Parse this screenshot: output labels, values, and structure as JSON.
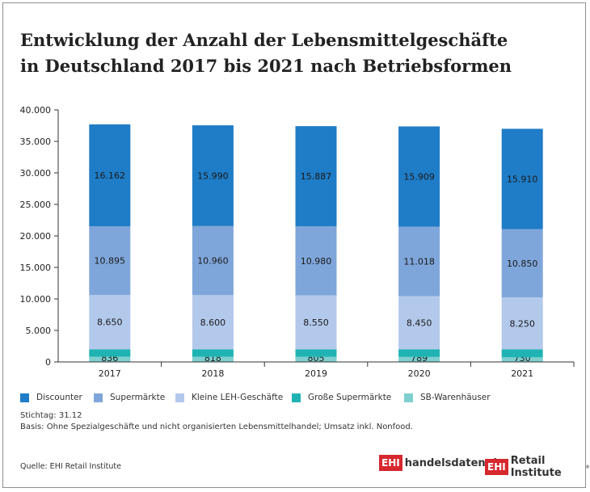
{
  "title": {
    "line1": "Entwicklung der Anzahl der Lebensmittelgeschäfte",
    "line2": "in Deutschland 2017 bis 2021 nach Betriebsformen"
  },
  "chart_data": {
    "type": "bar",
    "stacked": true,
    "categories": [
      "2017",
      "2018",
      "2019",
      "2020",
      "2021"
    ],
    "series": [
      {
        "name": "SB-Warenhäuser",
        "values": [
          836,
          818,
          805,
          789,
          730
        ],
        "labels": [
          "836",
          "818",
          "805",
          "789",
          "730"
        ],
        "color": "#7fcfcf"
      },
      {
        "name": "Große Supermärkte",
        "values": [
          1154,
          1183,
          1196,
          1209,
          1256
        ],
        "labels": [
          "1.154",
          "1.183",
          "1.196",
          "1.209",
          "1.256"
        ],
        "color": "#20b3b3"
      },
      {
        "name": "Kleine LEH-Geschäfte",
        "values": [
          8650,
          8600,
          8550,
          8450,
          8250
        ],
        "labels": [
          "8.650",
          "8.600",
          "8.550",
          "8.450",
          "8.250"
        ],
        "color": "#b3c9eb"
      },
      {
        "name": "Supermärkte",
        "values": [
          10895,
          10960,
          10980,
          11018,
          10850
        ],
        "labels": [
          "10.895",
          "10.960",
          "10.980",
          "11.018",
          "10.850"
        ],
        "color": "#7fa6da"
      },
      {
        "name": "Discounter",
        "values": [
          16162,
          15990,
          15887,
          15909,
          15910
        ],
        "labels": [
          "16.162",
          "15.990",
          "15.887",
          "15.909",
          "15.910"
        ],
        "color": "#1f7cc6"
      }
    ],
    "ylim": [
      0,
      40000
    ],
    "yticks": [
      0,
      5000,
      10000,
      15000,
      20000,
      25000,
      30000,
      35000,
      40000
    ],
    "ytick_labels": [
      "0",
      "5.000",
      "10.000",
      "15.000",
      "20.000",
      "25.000",
      "30.000",
      "35.000",
      "40.000"
    ],
    "legend_position": "bottom",
    "grid": false
  },
  "legend": [
    {
      "label": "Discounter",
      "color": "#1f7cc6"
    },
    {
      "label": "Supermärkte",
      "color": "#7fa6da"
    },
    {
      "label": "Kleine LEH-Geschäfte",
      "color": "#b3c9eb"
    },
    {
      "label": "Große Supermärkte",
      "color": "#20b3b3"
    },
    {
      "label": "SB-Warenhäuser",
      "color": "#7fcfcf"
    }
  ],
  "notes": {
    "stichtag": "Stichtag: 31.12",
    "basis": "Basis: Ohne Spezialgeschäfte und nicht organisierten Lebensmittelhandel; Umsatz inkl. Nonfood."
  },
  "source": "Quelle: EHI Retail Institute",
  "logos": {
    "box_text": "EHI",
    "handelsdaten": "handelsdaten.de",
    "retail": "Retail Institute",
    "reg": "®",
    "box_color": "#d7282f"
  }
}
